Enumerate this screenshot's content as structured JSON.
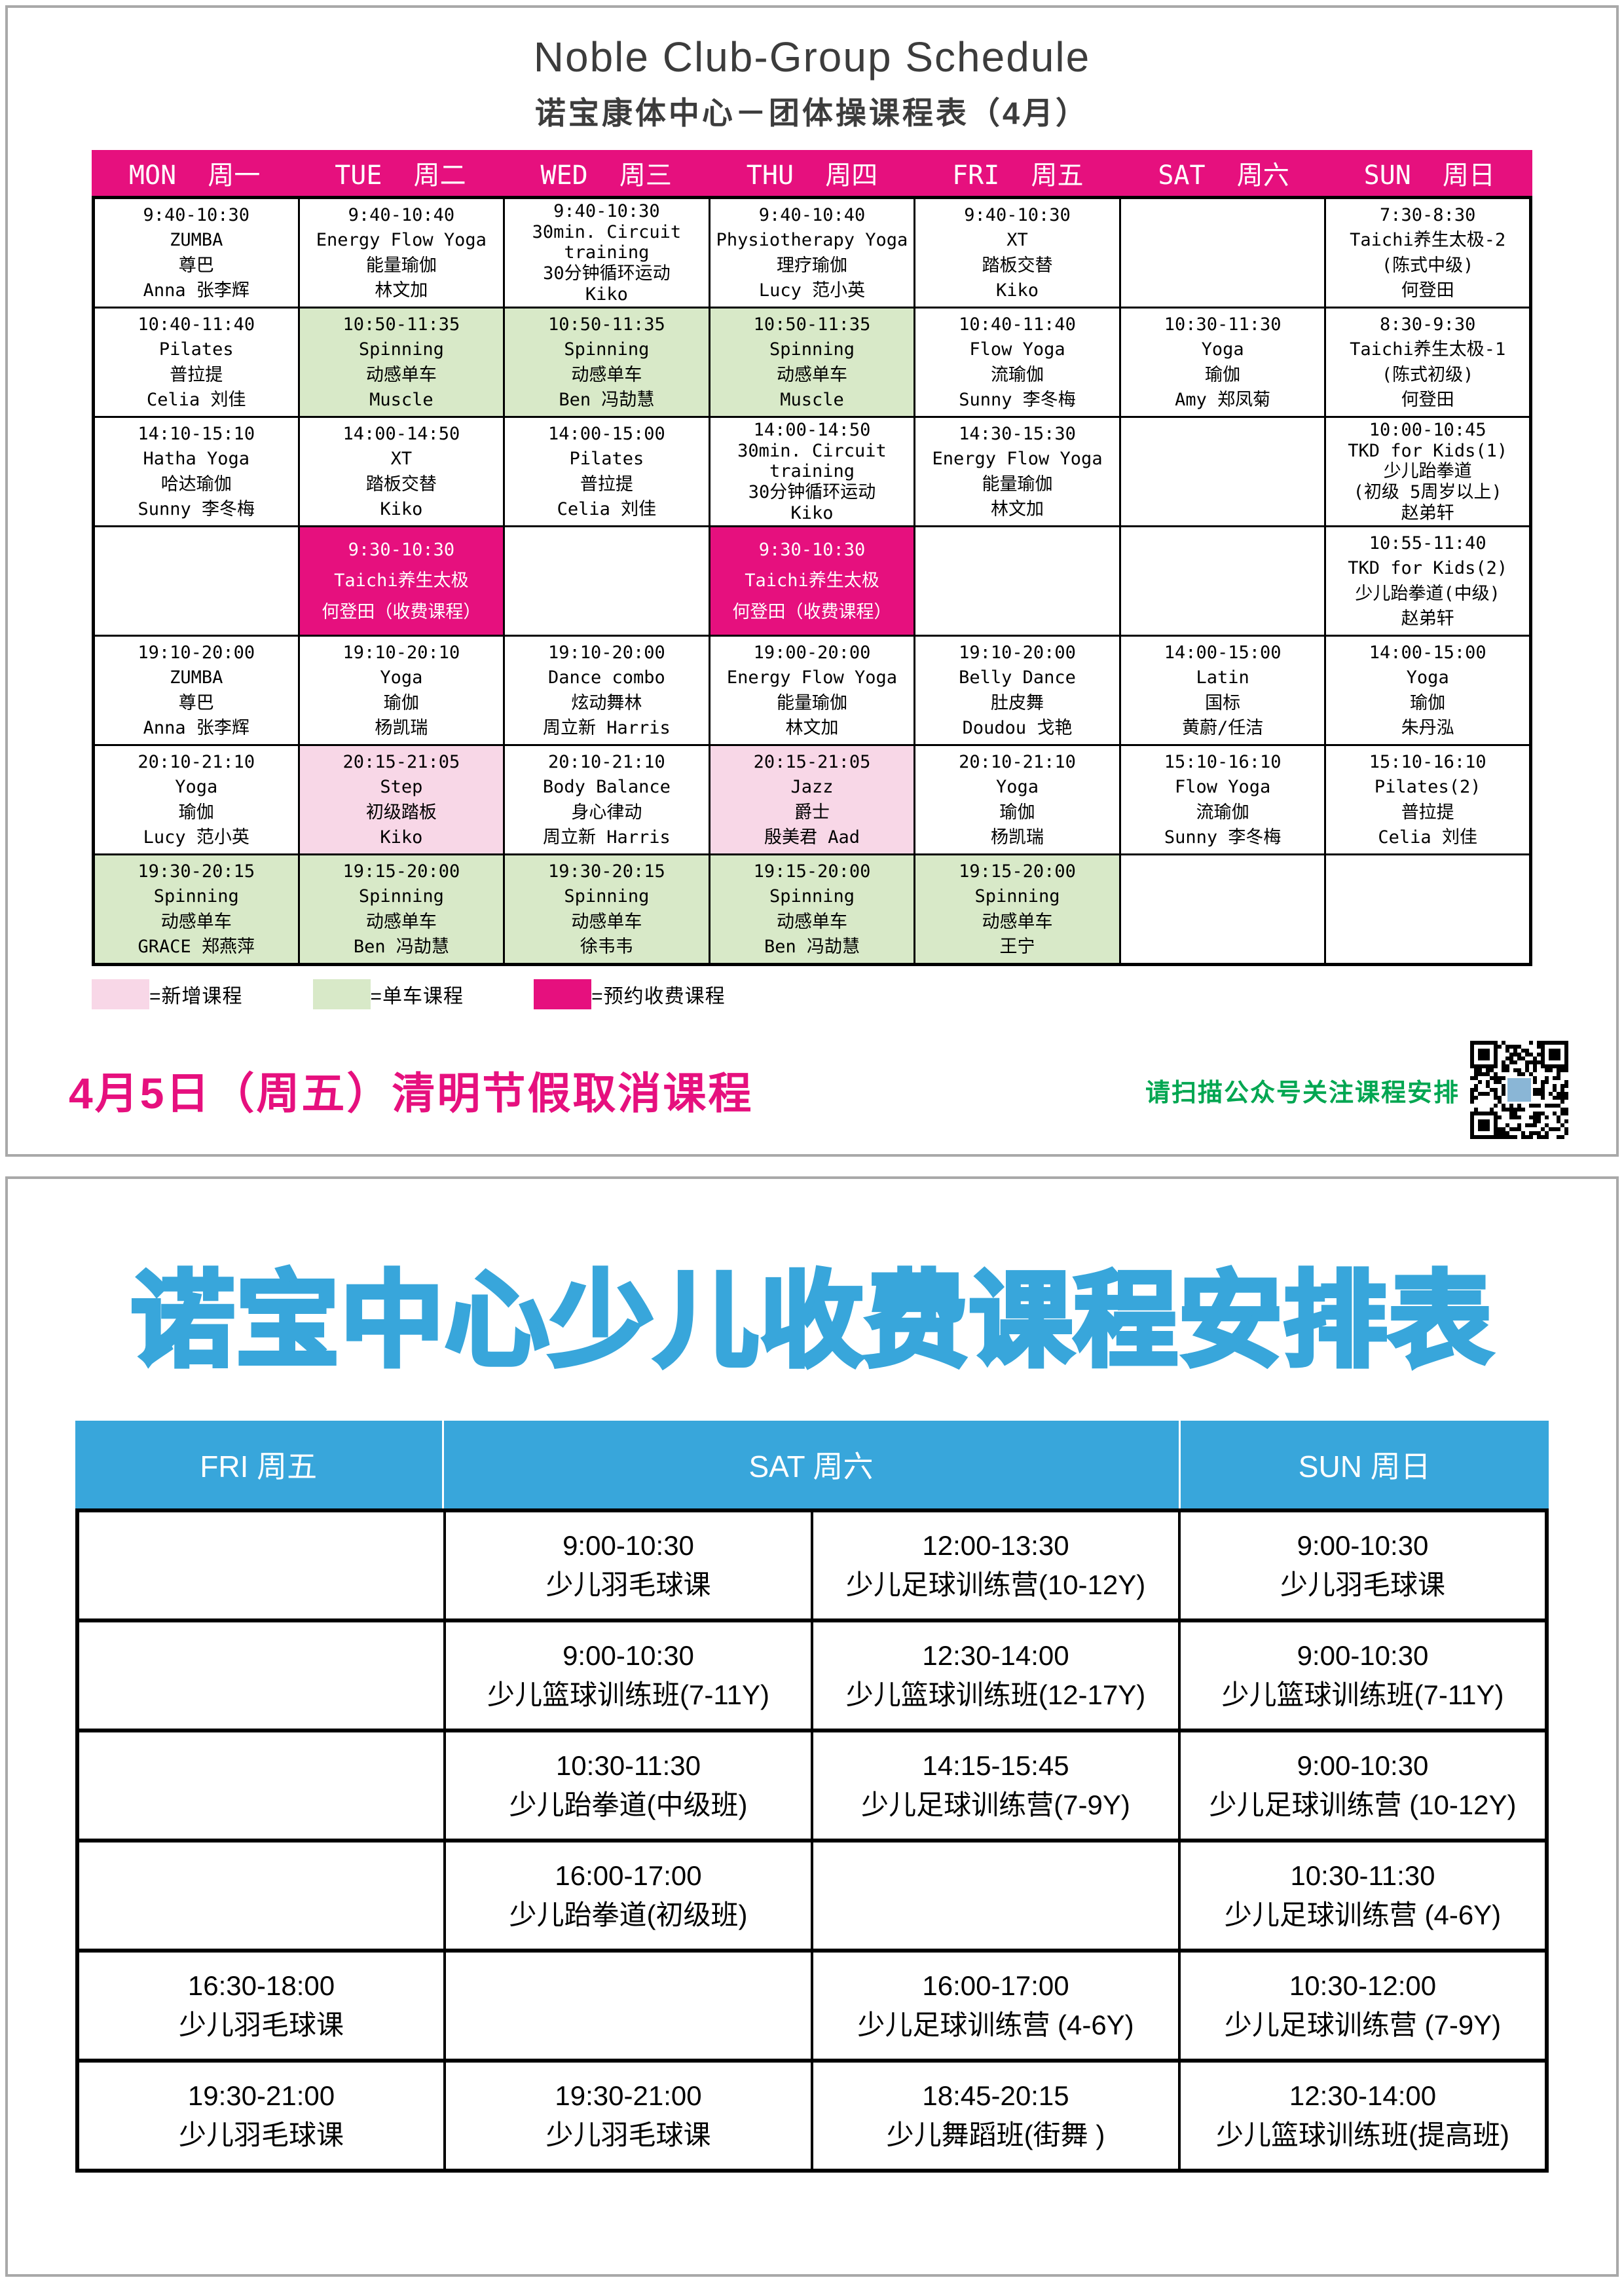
{
  "colors": {
    "magenta": "#e6107e",
    "light_pink": "#f8d7e7",
    "light_green": "#d8e9c8",
    "blue": "#38a6db",
    "green_text": "#00a651"
  },
  "section1": {
    "title_en": "Noble  Club-Group  Schedule",
    "title_zh": "诺宝康体中心－团体操课程表（4月）",
    "days": [
      {
        "en": "MON",
        "zh": "周一"
      },
      {
        "en": "TUE",
        "zh": "周二"
      },
      {
        "en": "WED",
        "zh": "周三"
      },
      {
        "en": "THU",
        "zh": "周四"
      },
      {
        "en": "FRI",
        "zh": "周五"
      },
      {
        "en": "SAT",
        "zh": "周六"
      },
      {
        "en": "SUN",
        "zh": "周日"
      }
    ],
    "rows": [
      [
        {
          "bg": "w",
          "lines": [
            "9:40-10:30",
            "ZUMBA",
            "尊巴",
            "Anna 张李辉"
          ]
        },
        {
          "bg": "w",
          "lines": [
            "9:40-10:40",
            "Energy Flow Yoga",
            "能量瑜伽",
            "林文加"
          ]
        },
        {
          "bg": "w",
          "lines": [
            "9:40-10:30",
            "30min. Circuit",
            "training",
            "30分钟循环运动",
            "Kiko"
          ]
        },
        {
          "bg": "w",
          "lines": [
            "9:40-10:40",
            "Physiotherapy Yoga",
            "理疗瑜伽",
            "Lucy 范小英"
          ]
        },
        {
          "bg": "w",
          "lines": [
            "9:40-10:30",
            "XT",
            "踏板交替",
            "Kiko"
          ]
        },
        {
          "bg": "w",
          "lines": []
        },
        {
          "bg": "w",
          "lines": [
            "7:30-8:30",
            "Taichi养生太极-2",
            "(陈式中级)",
            "何登田"
          ]
        }
      ],
      [
        {
          "bg": "w",
          "lines": [
            "10:40-11:40",
            "Pilates",
            "普拉提",
            "Celia 刘佳"
          ]
        },
        {
          "bg": "g",
          "lines": [
            "10:50-11:35",
            "Spinning",
            "动感单车",
            "Muscle"
          ]
        },
        {
          "bg": "g",
          "lines": [
            "10:50-11:35",
            "Spinning",
            "动感单车",
            "Ben 冯劼慧"
          ]
        },
        {
          "bg": "g",
          "lines": [
            "10:50-11:35",
            "Spinning",
            "动感单车",
            "Muscle"
          ]
        },
        {
          "bg": "w",
          "lines": [
            "10:40-11:40",
            "Flow Yoga",
            "流瑜伽",
            "Sunny 李冬梅"
          ]
        },
        {
          "bg": "w",
          "lines": [
            "10:30-11:30",
            "Yoga",
            "瑜伽",
            "Amy 郑凤菊"
          ]
        },
        {
          "bg": "w",
          "lines": [
            "8:30-9:30",
            "Taichi养生太极-1",
            "(陈式初级)",
            "何登田"
          ]
        }
      ],
      [
        {
          "bg": "w",
          "lines": [
            "14:10-15:10",
            "Hatha Yoga",
            "哈达瑜伽",
            "Sunny 李冬梅"
          ]
        },
        {
          "bg": "w",
          "lines": [
            "14:00-14:50",
            "XT",
            "踏板交替",
            "Kiko"
          ]
        },
        {
          "bg": "w",
          "lines": [
            "14:00-15:00",
            "Pilates",
            "普拉提",
            "Celia 刘佳"
          ]
        },
        {
          "bg": "w",
          "lines": [
            "14:00-14:50",
            "30min. Circuit",
            "training",
            "30分钟循环运动",
            "Kiko"
          ]
        },
        {
          "bg": "w",
          "lines": [
            "14:30-15:30",
            "Energy Flow Yoga",
            "能量瑜伽",
            "林文加"
          ]
        },
        {
          "bg": "w",
          "lines": []
        },
        {
          "bg": "w",
          "lines": [
            "10:00-10:45",
            "TKD for Kids(1)",
            "少儿跆拳道",
            "(初级 5周岁以上)",
            "赵弟轩"
          ]
        }
      ],
      [
        {
          "bg": "w",
          "lines": []
        },
        {
          "bg": "m",
          "lines": [
            "9:30-10:30",
            "Taichi养生太极",
            "何登田（收费课程）"
          ]
        },
        {
          "bg": "w",
          "lines": []
        },
        {
          "bg": "m",
          "lines": [
            "9:30-10:30",
            "Taichi养生太极",
            "何登田（收费课程）"
          ]
        },
        {
          "bg": "w",
          "lines": []
        },
        {
          "bg": "w",
          "lines": []
        },
        {
          "bg": "w",
          "lines": [
            "10:55-11:40",
            "TKD for Kids(2)",
            "少儿跆拳道(中级)",
            "赵弟轩"
          ]
        }
      ],
      [
        {
          "bg": "w",
          "lines": [
            "19:10-20:00",
            "ZUMBA",
            "尊巴",
            "Anna 张李辉"
          ]
        },
        {
          "bg": "w",
          "lines": [
            "19:10-20:10",
            "Yoga",
            "瑜伽",
            "杨凯瑞"
          ]
        },
        {
          "bg": "w",
          "lines": [
            "19:10-20:00",
            "Dance combo",
            "炫动舞林",
            "周立新 Harris"
          ]
        },
        {
          "bg": "w",
          "lines": [
            "19:00-20:00",
            "Energy Flow Yoga",
            "能量瑜伽",
            "林文加"
          ]
        },
        {
          "bg": "w",
          "lines": [
            "19:10-20:00",
            "Belly Dance",
            "肚皮舞",
            "Doudou 戈艳"
          ]
        },
        {
          "bg": "w",
          "lines": [
            "14:00-15:00",
            "Latin",
            "国标",
            "黄蔚/任洁"
          ]
        },
        {
          "bg": "w",
          "lines": [
            "14:00-15:00",
            "Yoga",
            "瑜伽",
            "朱丹泓"
          ]
        }
      ],
      [
        {
          "bg": "w",
          "lines": [
            "20:10-21:10",
            "Yoga",
            "瑜伽",
            "Lucy 范小英"
          ]
        },
        {
          "bg": "p",
          "lines": [
            "20:15-21:05",
            "Step",
            "初级踏板",
            "Kiko"
          ]
        },
        {
          "bg": "w",
          "lines": [
            "20:10-21:10",
            "Body Balance",
            "身心律动",
            "周立新 Harris"
          ]
        },
        {
          "bg": "p",
          "lines": [
            "20:15-21:05",
            "Jazz",
            "爵士",
            "殷美君 Aad"
          ]
        },
        {
          "bg": "w",
          "lines": [
            "20:10-21:10",
            "Yoga",
            "瑜伽",
            "杨凯瑞"
          ]
        },
        {
          "bg": "w",
          "lines": [
            "15:10-16:10",
            "Flow Yoga",
            "流瑜伽",
            "Sunny 李冬梅"
          ]
        },
        {
          "bg": "w",
          "lines": [
            "15:10-16:10",
            "Pilates(2)",
            "普拉提",
            "Celia 刘佳"
          ]
        }
      ],
      [
        {
          "bg": "g",
          "lines": [
            "19:30-20:15",
            "Spinning",
            "动感单车",
            "GRACE 郑燕萍"
          ]
        },
        {
          "bg": "g",
          "lines": [
            "19:15-20:00",
            "Spinning",
            "动感单车",
            "Ben 冯劼慧"
          ]
        },
        {
          "bg": "g",
          "lines": [
            "19:30-20:15",
            "Spinning",
            "动感单车",
            "徐韦韦"
          ]
        },
        {
          "bg": "g",
          "lines": [
            "19:15-20:00",
            "Spinning",
            "动感单车",
            "Ben 冯劼慧"
          ]
        },
        {
          "bg": "g",
          "lines": [
            "19:15-20:00",
            "Spinning",
            "动感单车",
            "王宁"
          ]
        },
        {
          "bg": "w",
          "lines": []
        },
        {
          "bg": "w",
          "lines": []
        }
      ]
    ],
    "legend": [
      {
        "swatch": "p",
        "label": "=新增课程"
      },
      {
        "swatch": "g",
        "label": "=单车课程"
      },
      {
        "swatch": "m",
        "label": "=预约收费课程"
      }
    ],
    "notice": "4月5日（周五）清明节假取消课程",
    "qr_caption": "请扫描公众号关注课程安排"
  },
  "section2": {
    "title": "诺宝中心少儿收费课程安排表",
    "headers": [
      "FRI 周五",
      "SAT 周六",
      "SUN 周日"
    ],
    "rows": [
      [
        {
          "lines": []
        },
        {
          "lines": [
            "9:00-10:30",
            "少儿羽毛球课"
          ]
        },
        {
          "lines": [
            "12:00-13:30",
            "少儿足球训练营(10-12Y)"
          ]
        },
        {
          "lines": [
            "9:00-10:30",
            "少儿羽毛球课"
          ]
        }
      ],
      [
        {
          "lines": []
        },
        {
          "lines": [
            "9:00-10:30",
            "少儿篮球训练班(7-11Y)"
          ]
        },
        {
          "lines": [
            "12:30-14:00",
            "少儿篮球训练班(12-17Y)"
          ]
        },
        {
          "lines": [
            "9:00-10:30",
            "少儿篮球训练班(7-11Y)"
          ]
        }
      ],
      [
        {
          "lines": []
        },
        {
          "lines": [
            "10:30-11:30",
            "少儿跆拳道(中级班)"
          ]
        },
        {
          "lines": [
            "14:15-15:45",
            "少儿足球训练营(7-9Y)"
          ]
        },
        {
          "lines": [
            "9:00-10:30",
            "少儿足球训练营 (10-12Y)"
          ]
        }
      ],
      [
        {
          "lines": []
        },
        {
          "lines": [
            "16:00-17:00",
            "少儿跆拳道(初级班)"
          ]
        },
        {
          "lines": []
        },
        {
          "lines": [
            "10:30-11:30",
            "少儿足球训练营 (4-6Y)"
          ]
        }
      ],
      [
        {
          "lines": [
            "16:30-18:00",
            "少儿羽毛球课"
          ]
        },
        {
          "lines": []
        },
        {
          "lines": [
            "16:00-17:00",
            "少儿足球训练营 (4-6Y)"
          ]
        },
        {
          "lines": [
            "10:30-12:00",
            "少儿足球训练营 (7-9Y)"
          ]
        }
      ],
      [
        {
          "lines": [
            "19:30-21:00",
            "少儿羽毛球课"
          ]
        },
        {
          "lines": [
            "19:30-21:00",
            "少儿羽毛球课"
          ]
        },
        {
          "lines": [
            "18:45-20:15",
            "少儿舞蹈班(街舞 )"
          ]
        },
        {
          "lines": [
            "12:30-14:00",
            "少儿篮球训练班(提高班)"
          ]
        }
      ]
    ]
  }
}
